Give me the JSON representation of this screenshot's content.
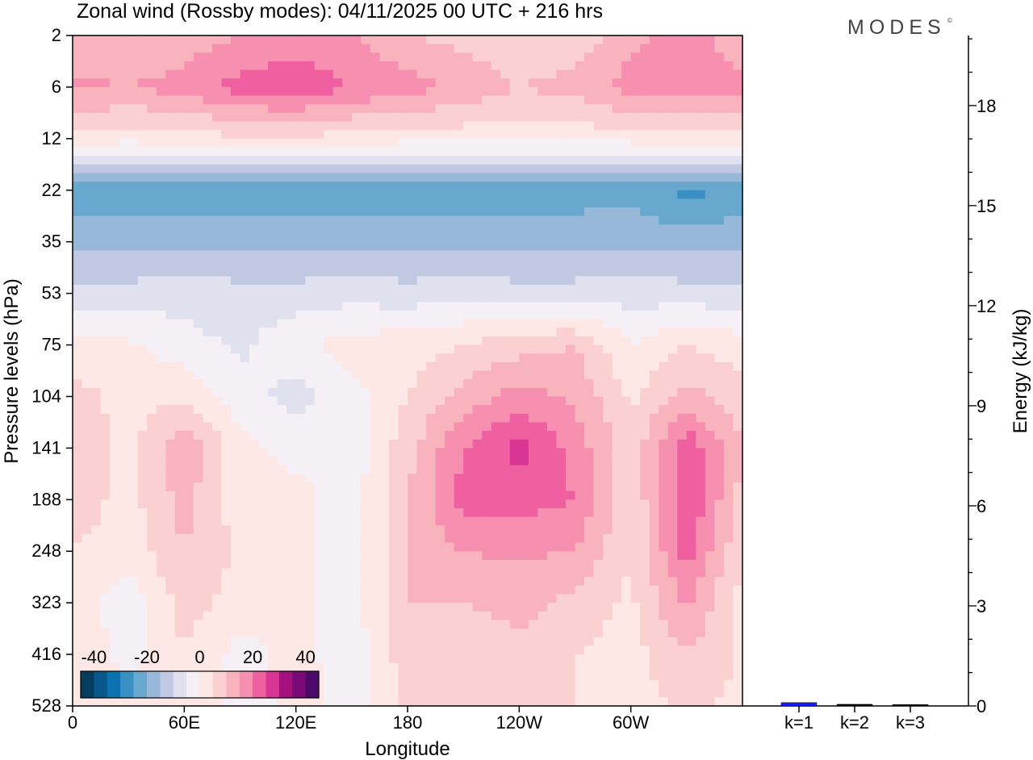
{
  "chart_data": [
    {
      "type": "heatmap",
      "title": "Zonal wind (Rossby modes):  04/11/2025  00 UTC  + 216 hrs",
      "xlabel": "Longitude",
      "ylabel": "Pressure levels (hPa)",
      "x_ticks": [
        "0",
        "60E",
        "120E",
        "180",
        "120W",
        "60W"
      ],
      "x_tick_values": [
        0,
        60,
        120,
        180,
        240,
        300
      ],
      "xlim": [
        0,
        360
      ],
      "lon": [
        0,
        30,
        60,
        90,
        120,
        150,
        180,
        210,
        240,
        270,
        300,
        330,
        360
      ],
      "levels": [
        2,
        6,
        12,
        22,
        35,
        53,
        75,
        104,
        141,
        188,
        248,
        323,
        416,
        528
      ],
      "y_ticks": [
        "2",
        "6",
        "12",
        "22",
        "35",
        "53",
        "75",
        "104",
        "141",
        "188",
        "248",
        "323",
        "416",
        "528"
      ],
      "values": [
        [
          12,
          10,
          12,
          15,
          17,
          15,
          10,
          8,
          5,
          6,
          14,
          17,
          12
        ],
        [
          16,
          15,
          17,
          22,
          24,
          20,
          17,
          14,
          10,
          12,
          17,
          18,
          16
        ],
        [
          3,
          2,
          3,
          4,
          4,
          3,
          2,
          2,
          2,
          2,
          2,
          3,
          3
        ],
        [
          -23,
          -23,
          -23,
          -23,
          -23,
          -23,
          -23,
          -23,
          -23,
          -23,
          -22,
          -27,
          -23
        ],
        [
          -17,
          -17,
          -16,
          -17,
          -17,
          -16,
          -17,
          -16,
          -17,
          -16,
          -16,
          -17,
          -17
        ],
        [
          -8,
          -8,
          -7,
          -8,
          -8,
          -7,
          -8,
          -7,
          -8,
          -8,
          -7,
          -8,
          -8
        ],
        [
          2,
          1,
          -3,
          -6,
          -1,
          2,
          3,
          5,
          8,
          10,
          0,
          5,
          2
        ],
        [
          7,
          3,
          4,
          -3,
          -7,
          -2,
          5,
          12,
          17,
          14,
          4,
          12,
          7
        ],
        [
          10,
          3,
          14,
          2,
          -2,
          -3,
          8,
          20,
          27,
          18,
          7,
          24,
          10
        ],
        [
          8,
          3,
          12,
          2,
          2,
          -3,
          10,
          22,
          22,
          20,
          5,
          25,
          8
        ],
        [
          5,
          2,
          10,
          4,
          2,
          -3,
          10,
          15,
          16,
          15,
          5,
          22,
          5
        ],
        [
          3,
          -3,
          7,
          3,
          2,
          -3,
          10,
          10,
          12,
          8,
          4,
          16,
          3
        ],
        [
          4,
          -2,
          5,
          -2,
          2,
          -3,
          8,
          6,
          8,
          5,
          3,
          10,
          4
        ],
        [
          4,
          1,
          4,
          -3,
          2,
          -2,
          6,
          6,
          5,
          5,
          3,
          6,
          4
        ]
      ],
      "colorbar": {
        "ticks": [
          "-40",
          "-20",
          "0",
          "20",
          "40"
        ],
        "range": [
          -45,
          45
        ],
        "step": 5,
        "colors": [
          "#063d5e",
          "#08588e",
          "#0b72b0",
          "#3a8fc4",
          "#68a8cf",
          "#97b8d9",
          "#c1c8e2",
          "#e0e0ef",
          "#f5eff6",
          "#fde8e6",
          "#fbd0d0",
          "#f9b3bd",
          "#f78fb0",
          "#f060a0",
          "#d93594",
          "#a5107e",
          "#7a0a76",
          "#4d0a6a"
        ]
      }
    },
    {
      "type": "bar",
      "categories": [
        "k=1",
        "k=2",
        "k=3"
      ],
      "values": [
        0.1,
        0.05,
        0.04
      ],
      "bar_colors": [
        "#1a1aff",
        "#000000",
        "#000000"
      ],
      "ylabel": "Energy (kJ/kg)",
      "y_ticks": [
        "0",
        "3",
        "6",
        "9",
        "12",
        "15",
        "18"
      ],
      "ylim": [
        0,
        20.1
      ]
    }
  ],
  "logo": "MODES"
}
